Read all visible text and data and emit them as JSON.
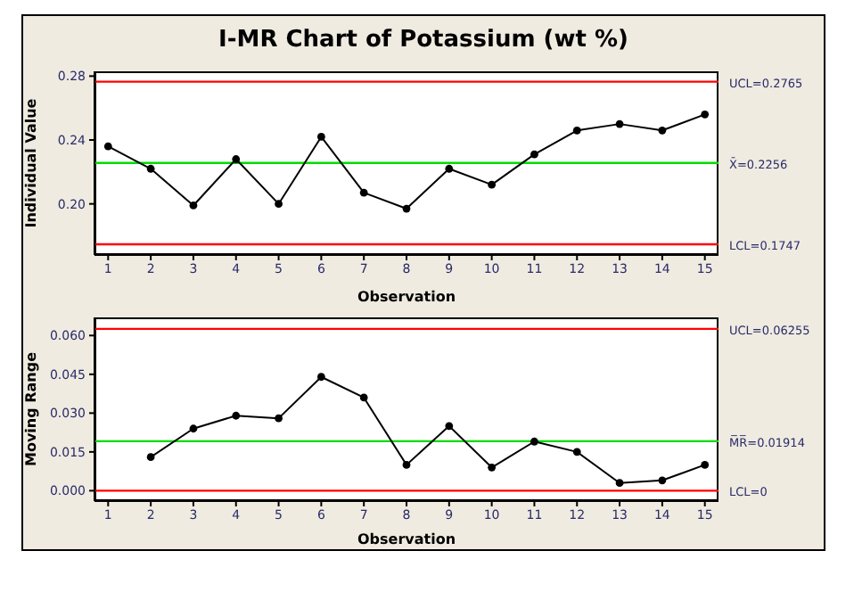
{
  "chart_data": [
    {
      "type": "line",
      "title": "I-MR Chart of Potassium (wt %)",
      "xlabel": "Observation",
      "ylabel": "Individual Value",
      "x": [
        1,
        2,
        3,
        4,
        5,
        6,
        7,
        8,
        9,
        10,
        11,
        12,
        13,
        14,
        15
      ],
      "series": [
        {
          "color": "#000000",
          "values": [
            0.236,
            0.222,
            0.199,
            0.228,
            0.2,
            0.242,
            0.207,
            0.197,
            0.222,
            0.212,
            0.231,
            0.246,
            0.25,
            0.246,
            0.256
          ]
        }
      ],
      "xlim": [
        0.68,
        15.32
      ],
      "xticks": [
        1,
        2,
        3,
        4,
        5,
        6,
        7,
        8,
        9,
        10,
        11,
        12,
        13,
        14,
        15
      ],
      "ylim": [
        0.168,
        0.283
      ],
      "yticks": [
        {
          "value": 0.2,
          "label": "0.20"
        },
        {
          "value": 0.24,
          "label": "0.24"
        },
        {
          "value": 0.28,
          "label": "0.28"
        }
      ],
      "marker": "circle",
      "ref_lines": [
        {
          "axis": "y",
          "value": 0.2765,
          "label": "UCL=0.2765",
          "color": "#ff0000"
        },
        {
          "axis": "y",
          "value": 0.2256,
          "label": "X̄=0.2256",
          "color": "#00dd00"
        },
        {
          "axis": "y",
          "value": 0.1747,
          "label": "LCL=0.1747",
          "color": "#ff0000"
        }
      ]
    },
    {
      "type": "line",
      "xlabel": "Observation",
      "ylabel": "Moving Range",
      "x": [
        2,
        3,
        4,
        5,
        6,
        7,
        8,
        9,
        10,
        11,
        12,
        13,
        14,
        15
      ],
      "series": [
        {
          "color": "#000000",
          "values": [
            0.013,
            0.024,
            0.029,
            0.028,
            0.044,
            0.036,
            0.01,
            0.025,
            0.009,
            0.019,
            0.015,
            0.003,
            0.004,
            0.01
          ]
        }
      ],
      "xlim": [
        0.68,
        15.32
      ],
      "xticks": [
        1,
        2,
        3,
        4,
        5,
        6,
        7,
        8,
        9,
        10,
        11,
        12,
        13,
        14,
        15
      ],
      "ylim": [
        -0.004,
        0.067
      ],
      "yticks": [
        {
          "value": 0,
          "label": "0.000"
        },
        {
          "value": 0.015,
          "label": "0.015"
        },
        {
          "value": 0.03,
          "label": "0.030"
        },
        {
          "value": 0.045,
          "label": "0.045"
        },
        {
          "value": 0.06,
          "label": "0.060"
        }
      ],
      "marker": "circle",
      "ref_lines": [
        {
          "axis": "y",
          "value": 0.06255,
          "label": "UCL=0.06255",
          "color": "#ff0000"
        },
        {
          "axis": "y",
          "value": 0.01914,
          "label": "M̅R̅=0.01914",
          "color": "#00dd00"
        },
        {
          "axis": "y",
          "value": 0,
          "label": "LCL=0",
          "color": "#ff0000"
        }
      ]
    }
  ]
}
